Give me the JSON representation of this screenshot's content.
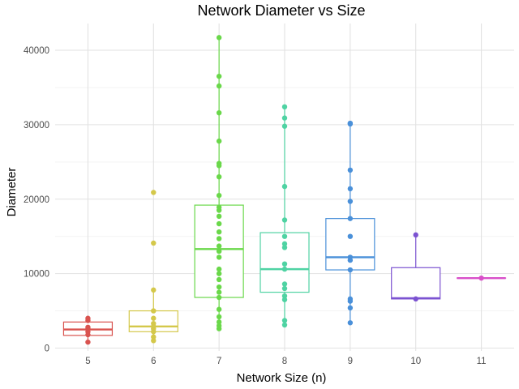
{
  "chart_data": {
    "type": "boxplot",
    "title": "Network Diameter vs Size",
    "xlabel": "Network Size (n)",
    "ylabel": "Diameter",
    "ylim": [
      -1000,
      43500
    ],
    "yticks": [
      0,
      10000,
      20000,
      30000,
      40000
    ],
    "yticklabels": [
      "0",
      "10000",
      "20000",
      "30000",
      "40000"
    ],
    "grid": true,
    "legend": "none",
    "categories": [
      "5",
      "6",
      "7",
      "8",
      "9",
      "10",
      "11"
    ],
    "series": [
      {
        "category": "5",
        "color": "#d9534f",
        "box": {
          "q1": 1700,
          "median": 2500,
          "q3": 3500,
          "whisker_low": 800,
          "whisker_high": 4000
        },
        "points": [
          800,
          1800,
          2200,
          2600,
          2800,
          3700,
          4000
        ]
      },
      {
        "category": "6",
        "color": "#d4c84a",
        "box": {
          "q1": 2200,
          "median": 2900,
          "q3": 5000,
          "whisker_low": 1000,
          "whisker_high": 7800
        },
        "points": [
          1000,
          1500,
          2200,
          2600,
          2900,
          3300,
          4000,
          5000,
          7800,
          14100,
          20900
        ]
      },
      {
        "category": "7",
        "color": "#6ad84a",
        "box": {
          "q1": 6800,
          "median": 13300,
          "q3": 19200,
          "whisker_low": 2600,
          "whisker_high": 41700
        },
        "points": [
          2600,
          3000,
          3500,
          4200,
          5200,
          6800,
          7500,
          8200,
          9200,
          10000,
          10600,
          12200,
          13000,
          13700,
          14700,
          15600,
          16700,
          17700,
          18500,
          18900,
          20500,
          23000,
          24500,
          24800,
          27800,
          31600,
          35200,
          36500,
          41700
        ]
      },
      {
        "category": "8",
        "color": "#4fd3a3",
        "box": {
          "q1": 7500,
          "median": 10600,
          "q3": 15500,
          "whisker_low": 3100,
          "whisker_high": 32400
        },
        "points": [
          3100,
          3700,
          6500,
          7000,
          8000,
          8600,
          10600,
          11300,
          13500,
          14000,
          15000,
          17200,
          21700,
          29800,
          30900,
          32400
        ]
      },
      {
        "category": "9",
        "color": "#4a90d9",
        "box": {
          "q1": 10500,
          "median": 12200,
          "q3": 17400,
          "whisker_low": 3400,
          "whisker_high": 30200
        },
        "points": [
          3400,
          5400,
          6300,
          6600,
          10500,
          11800,
          12200,
          15000,
          17400,
          19700,
          21400,
          23900,
          30100,
          30200
        ]
      },
      {
        "category": "10",
        "color": "#7b52d1",
        "box": {
          "q1": 6600,
          "median": 6700,
          "q3": 10800,
          "whisker_low": 6600,
          "whisker_high": 15200
        },
        "points": [
          6600,
          15200
        ]
      },
      {
        "category": "11",
        "color": "#d94fc9",
        "box": {
          "q1": 9400,
          "median": 9400,
          "q3": 9400,
          "whisker_low": 9400,
          "whisker_high": 9400
        },
        "points": [
          9400
        ]
      }
    ]
  }
}
